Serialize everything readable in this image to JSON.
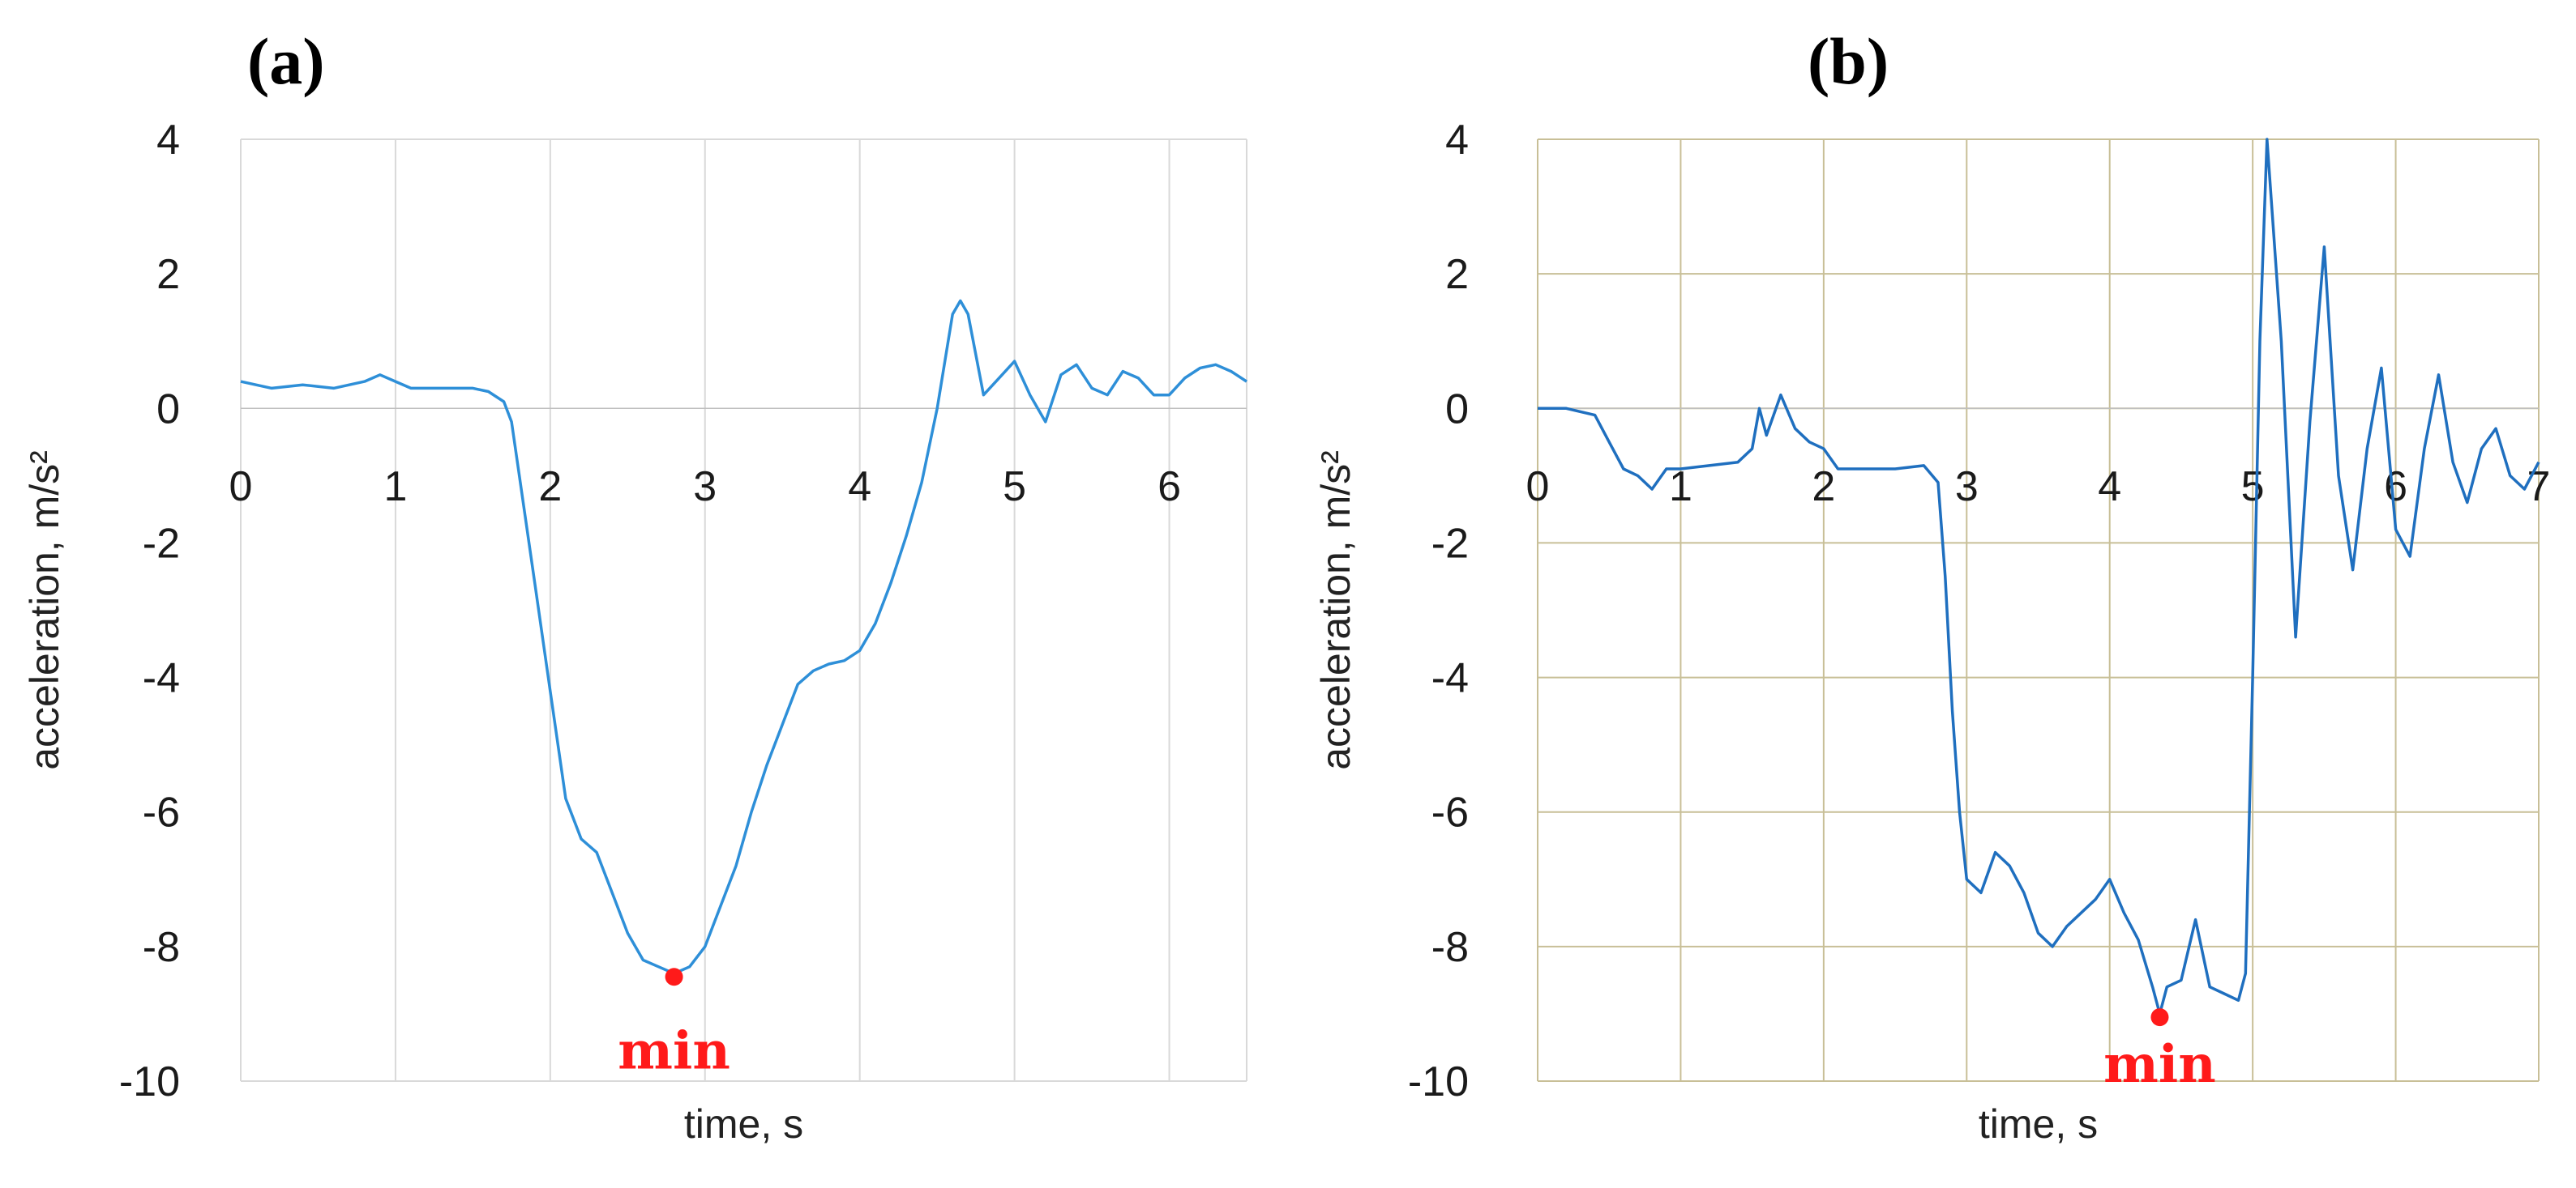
{
  "chart_data": [
    {
      "type": "line",
      "panel_label": "(a)",
      "xlabel": "time, s",
      "ylabel": "acceleration, m/s²",
      "xlim": [
        0,
        6.5
      ],
      "ylim": [
        -10,
        4
      ],
      "xticks": [
        0,
        1,
        2,
        3,
        4,
        5,
        6
      ],
      "yticks": [
        4,
        2,
        0,
        -2,
        -4,
        -6,
        -8,
        -10
      ],
      "grid": "vertical",
      "grid_color": "#d9d9d9",
      "line_color": "#2e8fd8",
      "series": [
        {
          "x": [
            0,
            0.2,
            0.4,
            0.6,
            0.8,
            0.9,
            1.0,
            1.1,
            1.3,
            1.5,
            1.6,
            1.7,
            1.75,
            1.8,
            1.9,
            2.0,
            2.1,
            2.2,
            2.3,
            2.4,
            2.5,
            2.6,
            2.7,
            2.8,
            2.9,
            3.0,
            3.1,
            3.2,
            3.3,
            3.4,
            3.5,
            3.6,
            3.7,
            3.8,
            3.9,
            4.0,
            4.1,
            4.2,
            4.3,
            4.4,
            4.5,
            4.6,
            4.65,
            4.7,
            4.8,
            4.9,
            5.0,
            5.1,
            5.2,
            5.3,
            5.4,
            5.5,
            5.6,
            5.7,
            5.8,
            5.9,
            6.0,
            6.1,
            6.2,
            6.3,
            6.4,
            6.5
          ],
          "y": [
            0.4,
            0.3,
            0.35,
            0.3,
            0.4,
            0.5,
            0.4,
            0.3,
            0.3,
            0.3,
            0.25,
            0.1,
            -0.2,
            -1.0,
            -2.6,
            -4.2,
            -5.8,
            -6.4,
            -6.6,
            -7.2,
            -7.8,
            -8.2,
            -8.3,
            -8.4,
            -8.3,
            -8.0,
            -7.4,
            -6.8,
            -6.0,
            -5.3,
            -4.7,
            -4.1,
            -3.9,
            -3.8,
            -3.75,
            -3.6,
            -3.2,
            -2.6,
            -1.9,
            -1.1,
            0.0,
            1.4,
            1.6,
            1.4,
            0.2,
            0.45,
            0.7,
            0.2,
            -0.2,
            0.5,
            0.65,
            0.3,
            0.2,
            0.55,
            0.45,
            0.2,
            0.2,
            0.45,
            0.6,
            0.65,
            0.55,
            0.4
          ]
        }
      ],
      "marker": {
        "x": 2.8,
        "y": -8.45,
        "color": "#ff1a1a"
      },
      "annotation": {
        "text": "min",
        "x": 2.8,
        "y": -9.55,
        "color": "#ff1a1a"
      }
    },
    {
      "type": "line",
      "panel_label": "(b)",
      "xlabel": "time, s",
      "ylabel": "acceleration, m/s²",
      "xlim": [
        0,
        7
      ],
      "ylim": [
        -10,
        4
      ],
      "xticks": [
        0,
        1,
        2,
        3,
        4,
        5,
        6,
        7
      ],
      "yticks": [
        4,
        2,
        0,
        -2,
        -4,
        -6,
        -8,
        -10
      ],
      "grid": "both",
      "grid_color": "#c8bf97",
      "line_color": "#1f6fbf",
      "series": [
        {
          "x": [
            0,
            0.2,
            0.4,
            0.5,
            0.6,
            0.7,
            0.8,
            0.9,
            1.0,
            1.2,
            1.4,
            1.5,
            1.55,
            1.6,
            1.7,
            1.8,
            1.9,
            2.0,
            2.1,
            2.3,
            2.5,
            2.7,
            2.8,
            2.85,
            2.9,
            2.95,
            3.0,
            3.1,
            3.2,
            3.3,
            3.4,
            3.5,
            3.6,
            3.7,
            3.8,
            3.9,
            4.0,
            4.1,
            4.2,
            4.3,
            4.35,
            4.4,
            4.5,
            4.6,
            4.7,
            4.8,
            4.9,
            4.95,
            5.0,
            5.05,
            5.1,
            5.2,
            5.3,
            5.4,
            5.5,
            5.6,
            5.7,
            5.8,
            5.9,
            6.0,
            6.1,
            6.2,
            6.3,
            6.4,
            6.5,
            6.6,
            6.7,
            6.8,
            6.9,
            7.0
          ],
          "y": [
            0.0,
            0.0,
            -0.1,
            -0.5,
            -0.9,
            -1.0,
            -1.2,
            -0.9,
            -0.9,
            -0.85,
            -0.8,
            -0.6,
            0.0,
            -0.4,
            0.2,
            -0.3,
            -0.5,
            -0.6,
            -0.9,
            -0.9,
            -0.9,
            -0.85,
            -1.1,
            -2.5,
            -4.5,
            -6.0,
            -7.0,
            -7.2,
            -6.6,
            -6.8,
            -7.2,
            -7.8,
            -8.0,
            -7.7,
            -7.5,
            -7.3,
            -7.0,
            -7.5,
            -7.9,
            -8.6,
            -9.0,
            -8.6,
            -8.5,
            -7.6,
            -8.6,
            -8.7,
            -8.8,
            -8.4,
            -4.0,
            1.0,
            4.0,
            1.0,
            -3.4,
            -0.2,
            2.4,
            -1.0,
            -2.4,
            -0.6,
            0.6,
            -1.8,
            -2.2,
            -0.6,
            0.5,
            -0.8,
            -1.4,
            -0.6,
            -0.3,
            -1.0,
            -1.2,
            -0.8
          ]
        }
      ],
      "marker": {
        "x": 4.35,
        "y": -9.05,
        "color": "#ff1a1a"
      },
      "annotation": {
        "text": "min",
        "x": 4.35,
        "y": -9.75,
        "color": "#ff1a1a"
      }
    }
  ]
}
